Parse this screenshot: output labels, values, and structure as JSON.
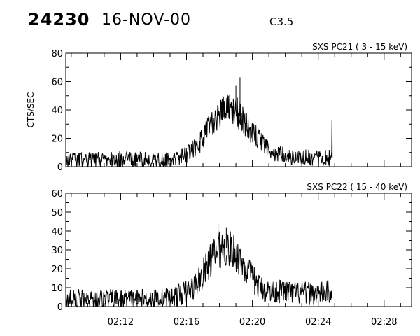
{
  "header": {
    "event_id": "24230",
    "date": "16-NOV-00",
    "flare_class": "C3.5"
  },
  "chart_data": [
    {
      "type": "line",
      "panel": "top",
      "title": "SXS PC21  (  3 - 15 keV)",
      "xlabel": "",
      "ylabel": "CTS/SEC",
      "xlim": [
        "02:08:40",
        "02:29:40"
      ],
      "ylim": [
        0,
        80
      ],
      "yticks": [
        0,
        20,
        40,
        60,
        80
      ],
      "xticks": [
        "02:12",
        "02:16",
        "02:20",
        "02:24",
        "02:28"
      ],
      "grid": false,
      "series": [
        {
          "x": [
            "02:08:40",
            "02:09:00",
            "02:10:00",
            "02:11:00",
            "02:12:00",
            "02:13:00",
            "02:14:00",
            "02:15:00",
            "02:15:30",
            "02:16:00",
            "02:16:30",
            "02:17:00",
            "02:17:20",
            "02:17:40",
            "02:18:00",
            "02:18:20",
            "02:18:40",
            "02:19:00",
            "02:19:20",
            "02:19:40",
            "02:20:00",
            "02:20:20",
            "02:20:40",
            "02:21:00",
            "02:21:30",
            "02:22:00",
            "02:22:30",
            "02:23:00",
            "02:24:00",
            "02:24:50",
            "02:24:55"
          ],
          "values": [
            4,
            5,
            5,
            5,
            5,
            5,
            5,
            5,
            6,
            9,
            13,
            20,
            27,
            33,
            37,
            40,
            41,
            39,
            35,
            29,
            24,
            19,
            15,
            12,
            9,
            8,
            7,
            7,
            6,
            6,
            33
          ],
          "spikes": [
            {
              "x": "02:18:10",
              "value": 48
            },
            {
              "x": "02:19:00",
              "value": 57
            },
            {
              "x": "02:19:15",
              "value": 63
            }
          ]
        }
      ]
    },
    {
      "type": "line",
      "panel": "bottom",
      "title": "SXS PC22  ( 15 - 40 keV)",
      "xlabel": "",
      "ylabel": "",
      "xlim": [
        "02:08:40",
        "02:29:40"
      ],
      "ylim": [
        0,
        60
      ],
      "yticks": [
        0,
        10,
        20,
        30,
        40,
        50,
        60
      ],
      "xticks": [
        "02:12",
        "02:16",
        "02:20",
        "02:24",
        "02:28"
      ],
      "grid": false,
      "series": [
        {
          "x": [
            "02:08:40",
            "02:09:00",
            "02:10:00",
            "02:11:00",
            "02:12:00",
            "02:13:00",
            "02:14:00",
            "02:15:00",
            "02:15:30",
            "02:16:00",
            "02:16:30",
            "02:17:00",
            "02:17:20",
            "02:17:40",
            "02:18:00",
            "02:18:20",
            "02:18:40",
            "02:19:00",
            "02:19:20",
            "02:19:40",
            "02:20:00",
            "02:20:20",
            "02:20:40",
            "02:21:00",
            "02:21:30",
            "02:22:00",
            "02:22:30",
            "02:23:00",
            "02:24:00",
            "02:24:50",
            "02:24:55"
          ],
          "values": [
            4,
            4,
            4,
            4,
            4,
            4,
            4,
            5,
            6,
            8,
            11,
            17,
            23,
            27,
            30,
            31,
            30,
            28,
            24,
            19,
            15,
            11,
            9,
            8,
            8,
            8,
            7,
            7,
            7,
            8,
            8
          ],
          "spikes": [
            {
              "x": "02:17:55",
              "value": 44
            },
            {
              "x": "02:18:25",
              "value": 42
            }
          ]
        }
      ]
    }
  ]
}
